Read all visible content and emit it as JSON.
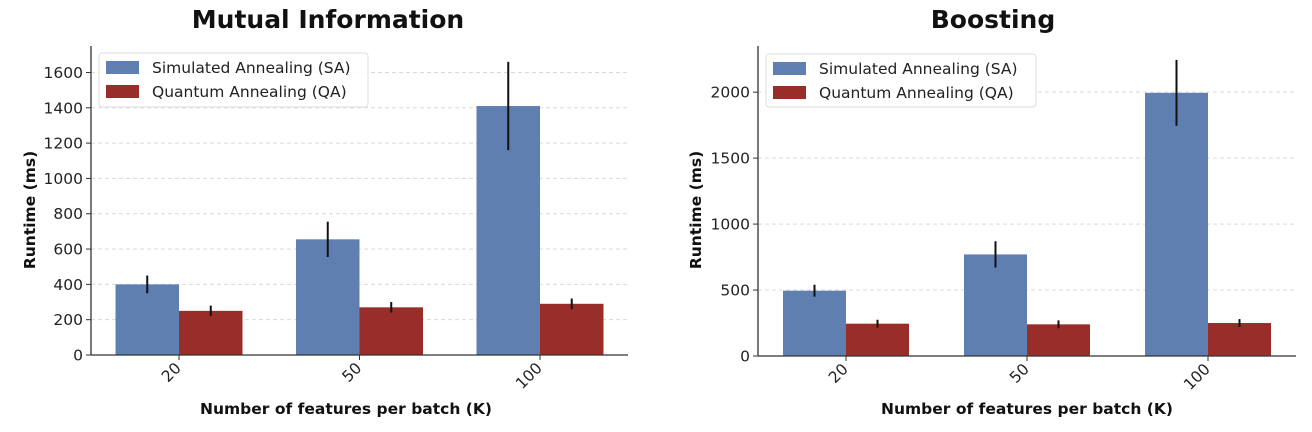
{
  "colors": {
    "sa": "#5e7fb0",
    "qa": "#982d2a",
    "error": "#111111",
    "grid": "#d9d9d9",
    "axis": "#333333"
  },
  "chart_data": [
    {
      "type": "bar",
      "title": "Mutual Information",
      "xlabel": "Number of features per batch (K)",
      "ylabel": "Runtime (ms)",
      "categories": [
        "20",
        "50",
        "100"
      ],
      "ylim": [
        0,
        1750
      ],
      "yticks": [
        0,
        200,
        400,
        600,
        800,
        1000,
        1200,
        1400,
        1600
      ],
      "ytick_labels": [
        "0",
        "200",
        "400",
        "600",
        "800",
        "1000",
        "1200",
        "1400",
        "1600"
      ],
      "grid": "y-dashed",
      "legend": "top-left",
      "series": [
        {
          "name": "Simulated Annealing (SA)",
          "key": "sa",
          "values": [
            400,
            655,
            1410
          ],
          "errors": [
            50,
            100,
            250
          ]
        },
        {
          "name": "Quantum Annealing (QA)",
          "key": "qa",
          "values": [
            250,
            270,
            290
          ],
          "errors": [
            30,
            30,
            30
          ]
        }
      ]
    },
    {
      "type": "bar",
      "title": "Boosting",
      "xlabel": "Number of features per batch (K)",
      "ylabel": "Runtime (ms)",
      "categories": [
        "20",
        "50",
        "100"
      ],
      "ylim": [
        0,
        2350
      ],
      "yticks": [
        0,
        500,
        1000,
        1500,
        2000
      ],
      "ytick_labels": [
        "0",
        "500",
        "1000",
        "1500",
        "2000"
      ],
      "grid": "y-dashed",
      "legend": "top-left",
      "series": [
        {
          "name": "Simulated Annealing (SA)",
          "key": "sa",
          "values": [
            495,
            770,
            1995
          ],
          "errors": [
            45,
            100,
            250
          ]
        },
        {
          "name": "Quantum Annealing (QA)",
          "key": "qa",
          "values": [
            245,
            240,
            250
          ],
          "errors": [
            30,
            30,
            30
          ]
        }
      ]
    }
  ]
}
